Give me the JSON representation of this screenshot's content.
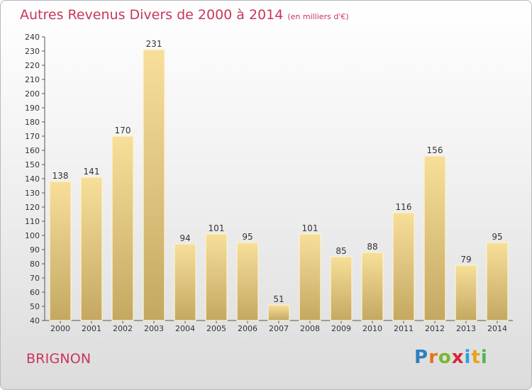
{
  "title": "Autres Revenus Divers de 2000 à 2014",
  "title_unit": "(en milliers d'€)",
  "commune": "BRIGNON",
  "logo": {
    "letters": [
      "P",
      "r",
      "o",
      "x",
      "i",
      "t",
      "i"
    ],
    "colors": [
      "#2e7fc0",
      "#e8741e",
      "#7ab82e",
      "#d8263a",
      "#2e9fd8",
      "#e8a31e",
      "#4ab84a"
    ]
  },
  "colors": {
    "title": "#c8365a",
    "bar_top": "#f7df9a",
    "bar_bottom": "#c4a862",
    "bar_edge": "#fdf3cf"
  },
  "chart_data": {
    "type": "bar",
    "title": "Autres Revenus Divers de 2000 à 2014",
    "xlabel": "",
    "ylabel": "",
    "categories": [
      "2000",
      "2001",
      "2002",
      "2003",
      "2004",
      "2005",
      "2006",
      "2007",
      "2008",
      "2009",
      "2010",
      "2011",
      "2012",
      "2013",
      "2014"
    ],
    "values": [
      138,
      141,
      170,
      231,
      94,
      101,
      95,
      51,
      101,
      85,
      88,
      116,
      156,
      79,
      95
    ],
    "ylim": [
      40,
      240
    ],
    "yticks": [
      40,
      50,
      60,
      70,
      80,
      90,
      100,
      110,
      120,
      130,
      140,
      150,
      160,
      170,
      180,
      190,
      200,
      210,
      220,
      230,
      240
    ],
    "grid": false,
    "data_labels": true
  }
}
